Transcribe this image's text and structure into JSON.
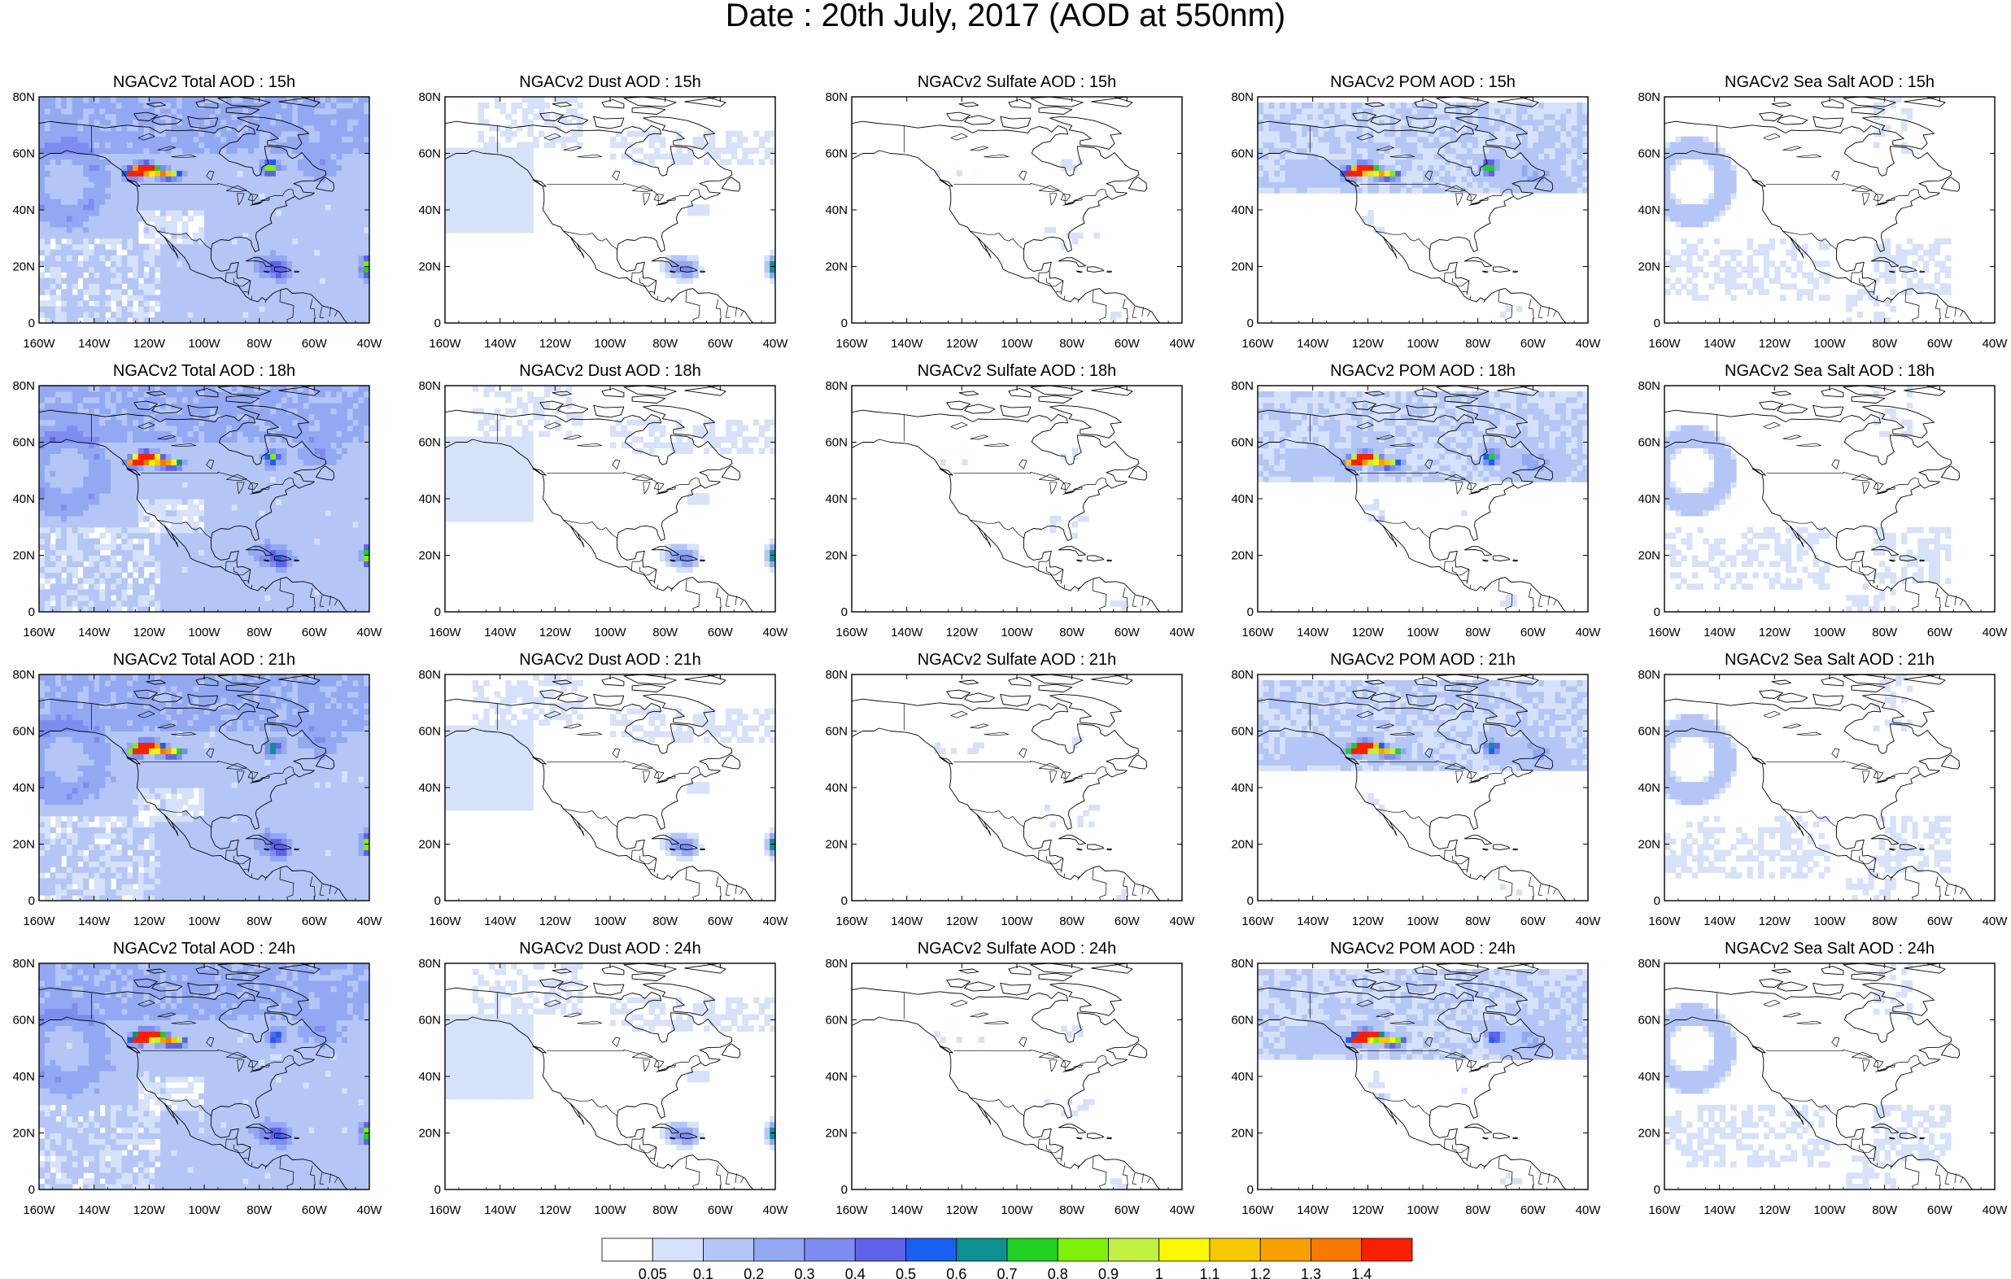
{
  "title": "Date : 20th July, 2017 (AOD at 550nm)",
  "columns": [
    {
      "key": "total",
      "titles": [
        "NGACv2 Total AOD : 15h",
        "NGACv2 Total AOD : 18h",
        "NGACv2 Total AOD : 21h",
        "NGACv2 Total AOD : 24h"
      ]
    },
    {
      "key": "dust",
      "titles": [
        "NGACv2 Dust AOD : 15h",
        "NGACv2 Dust AOD : 18h",
        "NGACv2 Dust AOD : 21h",
        "NGACv2 Dust AOD : 24h"
      ]
    },
    {
      "key": "sulfate",
      "titles": [
        "NGACv2 Sulfate AOD : 15h",
        "NGACv2 Sulfate AOD : 18h",
        "NGACv2 Sulfate AOD : 21h",
        "NGACv2 Sulfate AOD : 24h"
      ]
    },
    {
      "key": "pom",
      "titles": [
        "NGACv2 POM AOD : 15h",
        "NGACv2 POM AOD : 18h",
        "NGACv2 POM AOD : 21h",
        "NGACv2 POM AOD : 24h"
      ]
    },
    {
      "key": "seasalt",
      "titles": [
        "NGACv2 Sea Salt AOD : 15h",
        "NGACv2 Sea Salt AOD : 18h",
        "NGACv2 Sea Salt AOD : 21h",
        "NGACv2 Sea Salt  AOD : 24h"
      ]
    }
  ],
  "map_extent": {
    "lon_min": -160,
    "lon_max": -40,
    "lat_min": 0,
    "lat_max": 80
  },
  "x_ticks": [
    "160W",
    "140W",
    "120W",
    "100W",
    "80W",
    "60W",
    "40W"
  ],
  "y_ticks": [
    "0",
    "20N",
    "40N",
    "60N",
    "80N"
  ],
  "colorbar": {
    "labels": [
      "0.05",
      "0.1",
      "0.2",
      "0.3",
      "0.4",
      "0.5",
      "0.6",
      "0.7",
      "0.8",
      "0.9",
      "1",
      "1.1",
      "1.2",
      "1.3",
      "1.4"
    ],
    "colors": [
      "#ffffff",
      "#d6e2fa",
      "#b4c6f6",
      "#92a8f2",
      "#7e8cf0",
      "#5f62ea",
      "#1a5ff2",
      "#0c9090",
      "#20d020",
      "#7ef00a",
      "#c0f040",
      "#f8f800",
      "#f8c800",
      "#f8a000",
      "#f87800",
      "#f82000"
    ]
  }
}
